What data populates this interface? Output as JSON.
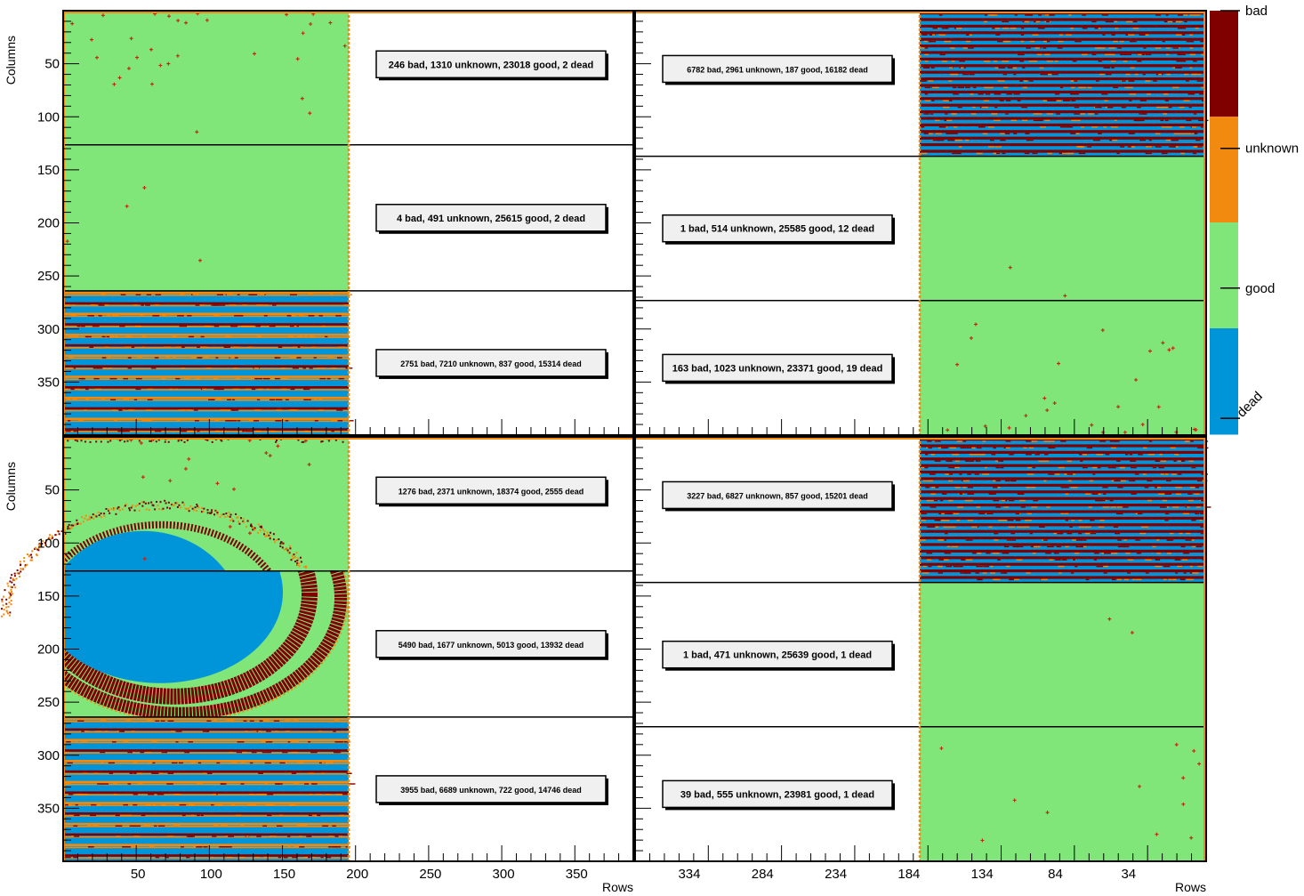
{
  "chart_data": {
    "type": "heatmap",
    "colors": {
      "bad": "#800000",
      "unknown": "#f28a0f",
      "good": "#80e67a",
      "dead": "#0094d9"
    },
    "legend": {
      "placement": "right",
      "entries": [
        "bad",
        "unknown",
        "good",
        "dead"
      ]
    },
    "panels": [
      {
        "position": "top-left",
        "xlabel": "",
        "ylabel": "Columns",
        "y_ticks": [
          "50",
          "100",
          "150",
          "200",
          "250",
          "300",
          "350"
        ],
        "x_ticks": [],
        "chips": [
          {
            "text": "246 bad, 1310 unknown, 23018 good, 2 dead",
            "bad": 246,
            "unknown": 1310,
            "good": 23018,
            "dead": 2,
            "pattern": "good_sparse_top"
          },
          {
            "text": "4 bad, 491 unknown, 25615 good, 2 dead",
            "bad": 4,
            "unknown": 491,
            "good": 25615,
            "dead": 2,
            "pattern": "good"
          },
          {
            "text": "2751 bad, 7210 unknown, 837 good, 15314 dead",
            "bad": 2751,
            "unknown": 7210,
            "good": 837,
            "dead": 15314,
            "pattern": "striped"
          }
        ]
      },
      {
        "position": "top-right",
        "xlabel": "",
        "ylabel": "",
        "y_ticks": [],
        "x_ticks": [],
        "chips": [
          {
            "text": "6782 bad, 2961 unknown, 187 good, 16182 dead",
            "bad": 6782,
            "unknown": 2961,
            "good": 187,
            "dead": 16182,
            "pattern": "striped_bad"
          },
          {
            "text": "1 bad, 514 unknown, 25585 good, 12 dead",
            "bad": 1,
            "unknown": 514,
            "good": 25585,
            "dead": 12,
            "pattern": "good"
          },
          {
            "text": "163 bad, 1023 unknown, 23371 good, 19 dead",
            "bad": 163,
            "unknown": 1023,
            "good": 23371,
            "dead": 19,
            "pattern": "good_sparse_bottom"
          }
        ]
      },
      {
        "position": "bottom-left",
        "xlabel": "Rows",
        "ylabel": "Columns",
        "y_ticks": [
          "50",
          "100",
          "150",
          "200",
          "250",
          "300",
          "350"
        ],
        "x_ticks": [
          "50",
          "100",
          "150",
          "200",
          "250",
          "300",
          "350"
        ],
        "chips": [
          {
            "text": "1276 bad, 2371 unknown, 18374 good, 2555 dead",
            "bad": 1276,
            "unknown": 2371,
            "good": 18374,
            "dead": 2555,
            "pattern": "ellipse_top"
          },
          {
            "text": "5490 bad, 1677 unknown, 5013 good, 13932 dead",
            "bad": 5490,
            "unknown": 1677,
            "good": 5013,
            "dead": 13932,
            "pattern": "ellipse_mid"
          },
          {
            "text": "3955 bad, 6689 unknown, 722 good, 14746 dead",
            "bad": 3955,
            "unknown": 6689,
            "good": 722,
            "dead": 14746,
            "pattern": "striped"
          }
        ]
      },
      {
        "position": "bottom-right",
        "xlabel": "Rows",
        "ylabel": "",
        "y_ticks": [],
        "x_ticks": [
          "334",
          "284",
          "234",
          "184",
          "134",
          "84",
          "34"
        ],
        "chips": [
          {
            "text": "3227 bad, 6827 unknown, 857 good, 15201 dead",
            "bad": 3227,
            "unknown": 6827,
            "good": 857,
            "dead": 15201,
            "pattern": "striped_bad"
          },
          {
            "text": "1 bad, 471 unknown, 25639 good, 1 dead",
            "bad": 1,
            "unknown": 471,
            "good": 25639,
            "dead": 1,
            "pattern": "good"
          },
          {
            "text": "39 bad, 555 unknown, 23981 good, 1 dead",
            "bad": 39,
            "unknown": 555,
            "good": 23981,
            "dead": 1,
            "pattern": "good"
          }
        ]
      }
    ]
  }
}
